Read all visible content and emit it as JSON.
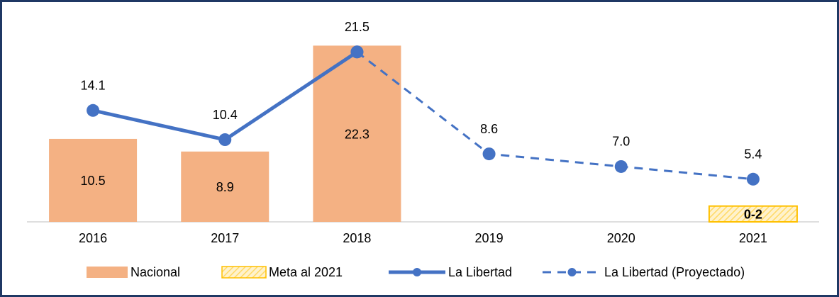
{
  "chart_data": {
    "type": "combo",
    "categories": [
      "2016",
      "2017",
      "2018",
      "2019",
      "2020",
      "2021"
    ],
    "ylim": [
      0,
      23.5
    ],
    "series": [
      {
        "name": "Nacional",
        "type": "bar",
        "color": "#f4b183",
        "values": [
          10.5,
          8.9,
          22.3,
          null,
          null,
          null
        ]
      },
      {
        "name": "Meta al 2021",
        "type": "bar",
        "color": "#ffd966",
        "pattern": "hatch",
        "values": [
          null,
          null,
          null,
          null,
          null,
          2
        ],
        "value_labels": [
          null,
          null,
          null,
          null,
          null,
          "0-2"
        ]
      },
      {
        "name": "La Libertad",
        "type": "line",
        "color": "#4472c4",
        "values": [
          14.1,
          10.4,
          21.5,
          null,
          null,
          null
        ]
      },
      {
        "name": "La Libertad (Proyectado)",
        "type": "line",
        "color": "#4472c4",
        "dash": true,
        "values": [
          null,
          null,
          21.5,
          8.6,
          7.0,
          5.4
        ],
        "value_labels": [
          null,
          null,
          null,
          "8.6",
          "7.0",
          "5.4"
        ]
      }
    ]
  }
}
